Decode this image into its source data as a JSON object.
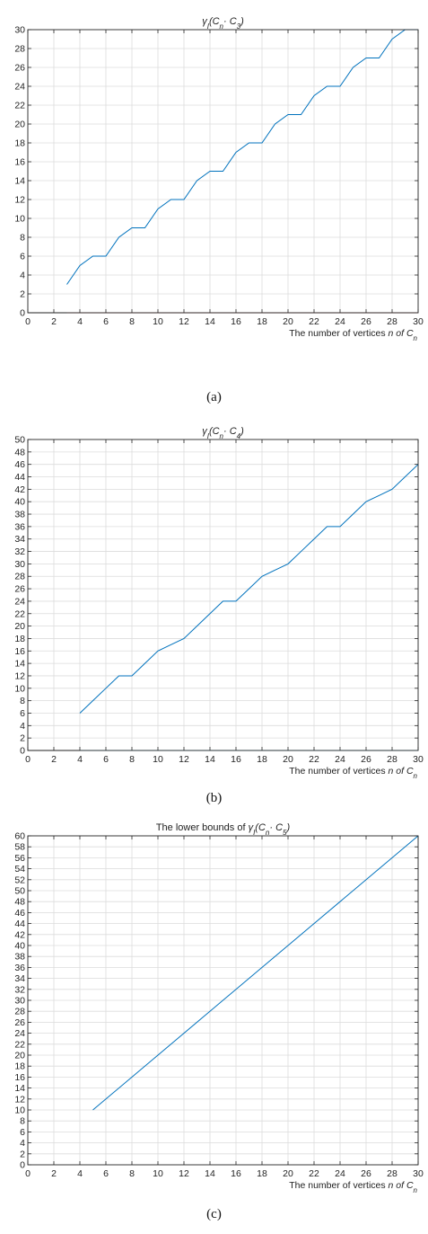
{
  "charts": [
    {
      "type": "line",
      "title_parts": [
        {
          "t": "γ",
          "i": true
        },
        {
          "t": "I",
          "i": true,
          "sub": true
        },
        {
          "t": "(C",
          "i": true
        },
        {
          "t": "n",
          "i": true,
          "sub": true
        },
        {
          "t": "· C",
          "i": true
        },
        {
          "t": "3",
          "i": true,
          "sub": true
        },
        {
          "t": ")",
          "i": true
        }
      ],
      "xlabel_parts": [
        {
          "t": "The number of vertices "
        },
        {
          "t": "n of C",
          "i": true
        },
        {
          "t": "n",
          "i": true,
          "sub": true
        }
      ],
      "xlim": [
        0,
        30
      ],
      "ylim": [
        0,
        30
      ],
      "xticks": [
        0,
        2,
        4,
        6,
        8,
        10,
        12,
        14,
        16,
        18,
        20,
        22,
        24,
        26,
        28,
        30
      ],
      "yticks": [
        0,
        2,
        4,
        6,
        8,
        10,
        12,
        14,
        16,
        18,
        20,
        22,
        24,
        26,
        28,
        30
      ],
      "grid": true,
      "series": [
        {
          "color": "#0072bd",
          "x": [
            3,
            4,
            5,
            6,
            7,
            8,
            9,
            10,
            11,
            12,
            13,
            14,
            15,
            16,
            17,
            18,
            19,
            20,
            21,
            22,
            23,
            24,
            25,
            26,
            27,
            28,
            29,
            30
          ],
          "y": [
            3,
            5,
            6,
            6,
            8,
            9,
            9,
            11,
            12,
            12,
            14,
            15,
            15,
            17,
            18,
            18,
            20,
            21,
            21,
            23,
            24,
            24,
            26,
            27,
            27,
            29,
            30,
            30
          ]
        },
        {
          "color": "#a2142f",
          "x": [
            3,
            30
          ],
          "y": [
            0,
            0
          ]
        },
        {
          "color": "#000000",
          "x": [
            0,
            3
          ],
          "y": [
            0,
            0
          ]
        }
      ],
      "caption": "(a)"
    },
    {
      "type": "line",
      "title_parts": [
        {
          "t": "γ",
          "i": true
        },
        {
          "t": "I",
          "i": true,
          "sub": true
        },
        {
          "t": "(C",
          "i": true
        },
        {
          "t": "n",
          "i": true,
          "sub": true
        },
        {
          "t": "· C",
          "i": true
        },
        {
          "t": "4",
          "i": true,
          "sub": true
        },
        {
          "t": ")",
          "i": true
        }
      ],
      "xlabel_parts": [
        {
          "t": "The number of vertices "
        },
        {
          "t": "n of C",
          "i": true
        },
        {
          "t": "n",
          "i": true,
          "sub": true
        }
      ],
      "xlim": [
        0,
        30
      ],
      "ylim": [
        0,
        50
      ],
      "xticks": [
        0,
        2,
        4,
        6,
        8,
        10,
        12,
        14,
        16,
        18,
        20,
        22,
        24,
        26,
        28,
        30
      ],
      "yticks": [
        0,
        2,
        4,
        6,
        8,
        10,
        12,
        14,
        16,
        18,
        20,
        22,
        24,
        26,
        28,
        30,
        32,
        34,
        36,
        38,
        40,
        42,
        44,
        46,
        48,
        50
      ],
      "grid": true,
      "series": [
        {
          "color": "#0072bd",
          "x": [
            4,
            5,
            6,
            7,
            8,
            9,
            10,
            11,
            12,
            13,
            14,
            15,
            16,
            17,
            18,
            19,
            20,
            21,
            22,
            23,
            24,
            25,
            26,
            27,
            28,
            29,
            30
          ],
          "y": [
            6,
            8,
            10,
            12,
            12,
            14,
            16,
            17,
            18,
            20,
            22,
            24,
            24,
            26,
            28,
            29,
            30,
            32,
            34,
            36,
            36,
            38,
            40,
            41,
            42,
            44,
            46
          ]
        },
        {
          "color": "#4dbeee",
          "x": [
            4,
            30
          ],
          "y": [
            0,
            0
          ]
        },
        {
          "color": "#000000",
          "x": [
            0,
            4
          ],
          "y": [
            0,
            0
          ]
        }
      ],
      "caption": "(b)"
    },
    {
      "type": "line",
      "title_parts": [
        {
          "t": "The lower bounds of "
        },
        {
          "t": "γ",
          "i": true
        },
        {
          "t": "I",
          "i": true,
          "sub": true
        },
        {
          "t": "(C",
          "i": true
        },
        {
          "t": "n",
          "i": true,
          "sub": true
        },
        {
          "t": "· C",
          "i": true
        },
        {
          "t": "5",
          "i": true,
          "sub": true
        },
        {
          "t": ")",
          "i": true
        }
      ],
      "xlabel_parts": [
        {
          "t": "The number of vertices "
        },
        {
          "t": "n of C",
          "i": true
        },
        {
          "t": "n",
          "i": true,
          "sub": true
        }
      ],
      "xlim": [
        0,
        30
      ],
      "ylim": [
        0,
        60
      ],
      "xticks": [
        0,
        2,
        4,
        6,
        8,
        10,
        12,
        14,
        16,
        18,
        20,
        22,
        24,
        26,
        28,
        30
      ],
      "yticks": [
        0,
        2,
        4,
        6,
        8,
        10,
        12,
        14,
        16,
        18,
        20,
        22,
        24,
        26,
        28,
        30,
        32,
        34,
        36,
        38,
        40,
        42,
        44,
        46,
        48,
        50,
        52,
        54,
        56,
        58,
        60
      ],
      "grid": true,
      "series": [
        {
          "color": "#0072bd",
          "x": [
            5,
            30
          ],
          "y": [
            10,
            60
          ]
        }
      ],
      "caption": "(c)"
    }
  ]
}
